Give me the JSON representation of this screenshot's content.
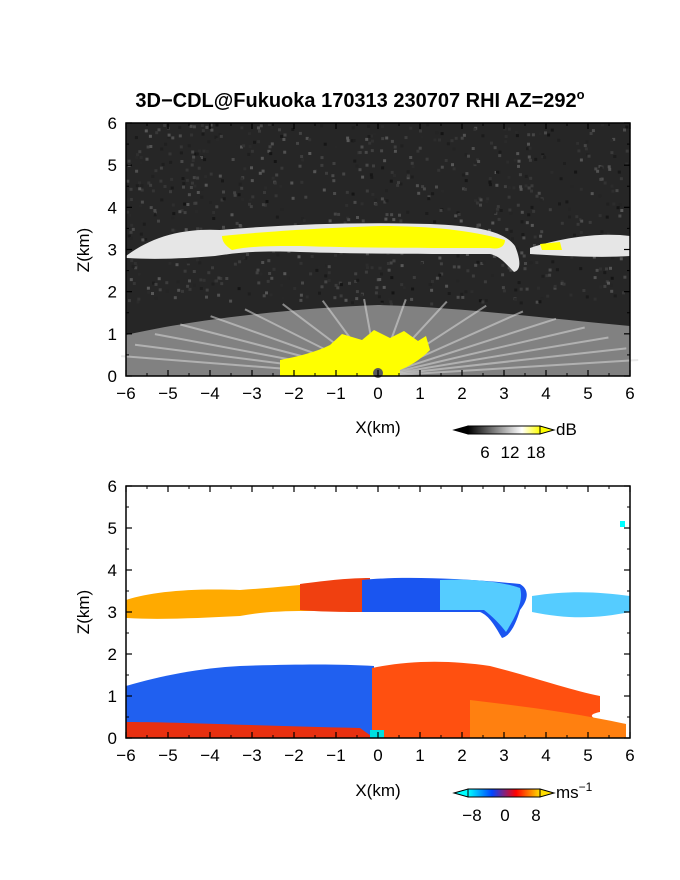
{
  "title_main": "3D−CDL@Fukuoka 170313 230707 RHI AZ=292",
  "title_sup": "o",
  "chart_data": [
    {
      "type": "heatmap",
      "quantity": "backscatter intensity",
      "xlabel": "X(km)",
      "ylabel": "Z(km)",
      "xlim": [
        -6,
        6
      ],
      "ylim": [
        0,
        6
      ],
      "xticks": [
        -6,
        -5,
        -4,
        -3,
        -2,
        -1,
        0,
        1,
        2,
        3,
        4,
        5,
        6
      ],
      "yticks": [
        0,
        1,
        2,
        3,
        4,
        5,
        6
      ],
      "colorbar": {
        "unit": "dB",
        "ticks": [
          6,
          12,
          18
        ],
        "colors": [
          "#000000",
          "#555555",
          "#aaaaaa",
          "#ffffff",
          "#ffff00"
        ],
        "orientation": "horizontal",
        "extend": "both"
      },
      "features": [
        {
          "name": "cloud layer",
          "x": [
            -6,
            6
          ],
          "z": [
            2.8,
            3.6
          ],
          "value_range": [
            10,
            20
          ]
        },
        {
          "name": "strong returns near lidar",
          "x": [
            -2.2,
            1.6
          ],
          "z": [
            0,
            0.8
          ],
          "value_range": [
            18,
            20
          ]
        },
        {
          "name": "boundary-layer haze",
          "x": [
            -6,
            6
          ],
          "z": [
            0,
            1.7
          ],
          "value_range": [
            6,
            14
          ]
        },
        {
          "name": "background noise",
          "x": [
            -6,
            6
          ],
          "z": [
            1.7,
            6
          ],
          "value_range": [
            0,
            5
          ]
        }
      ]
    },
    {
      "type": "heatmap",
      "quantity": "Doppler velocity",
      "xlabel": "X(km)",
      "ylabel": "Z(km)",
      "xlim": [
        -6,
        6
      ],
      "ylim": [
        0,
        6
      ],
      "xticks": [
        -6,
        -5,
        -4,
        -3,
        -2,
        -1,
        0,
        1,
        2,
        3,
        4,
        5,
        6
      ],
      "yticks": [
        0,
        1,
        2,
        3,
        4,
        5,
        6
      ],
      "colorbar": {
        "unit": "ms",
        "unit_sup": "−1",
        "ticks": [
          "−8",
          "0",
          "8"
        ],
        "colors": [
          "#00ffff",
          "#0044ff",
          "#ff0000",
          "#ffdd00"
        ],
        "orientation": "horizontal",
        "extend": "both"
      },
      "features": [
        {
          "name": "upper layer left",
          "x": [
            -6,
            -0.3
          ],
          "z": [
            2.8,
            3.8
          ],
          "velocity_range": [
            3,
            8
          ]
        },
        {
          "name": "upper layer right",
          "x": [
            -0.3,
            6
          ],
          "z": [
            2.4,
            3.7
          ],
          "velocity_range": [
            -9,
            -5
          ]
        },
        {
          "name": "lower layer left",
          "x": [
            -6,
            0
          ],
          "z": [
            0,
            1.7
          ],
          "velocity_range": [
            -6,
            -4
          ]
        },
        {
          "name": "lower layer right",
          "x": [
            0,
            6
          ],
          "z": [
            0,
            1.8
          ],
          "velocity_range": [
            0,
            4
          ]
        }
      ]
    }
  ]
}
